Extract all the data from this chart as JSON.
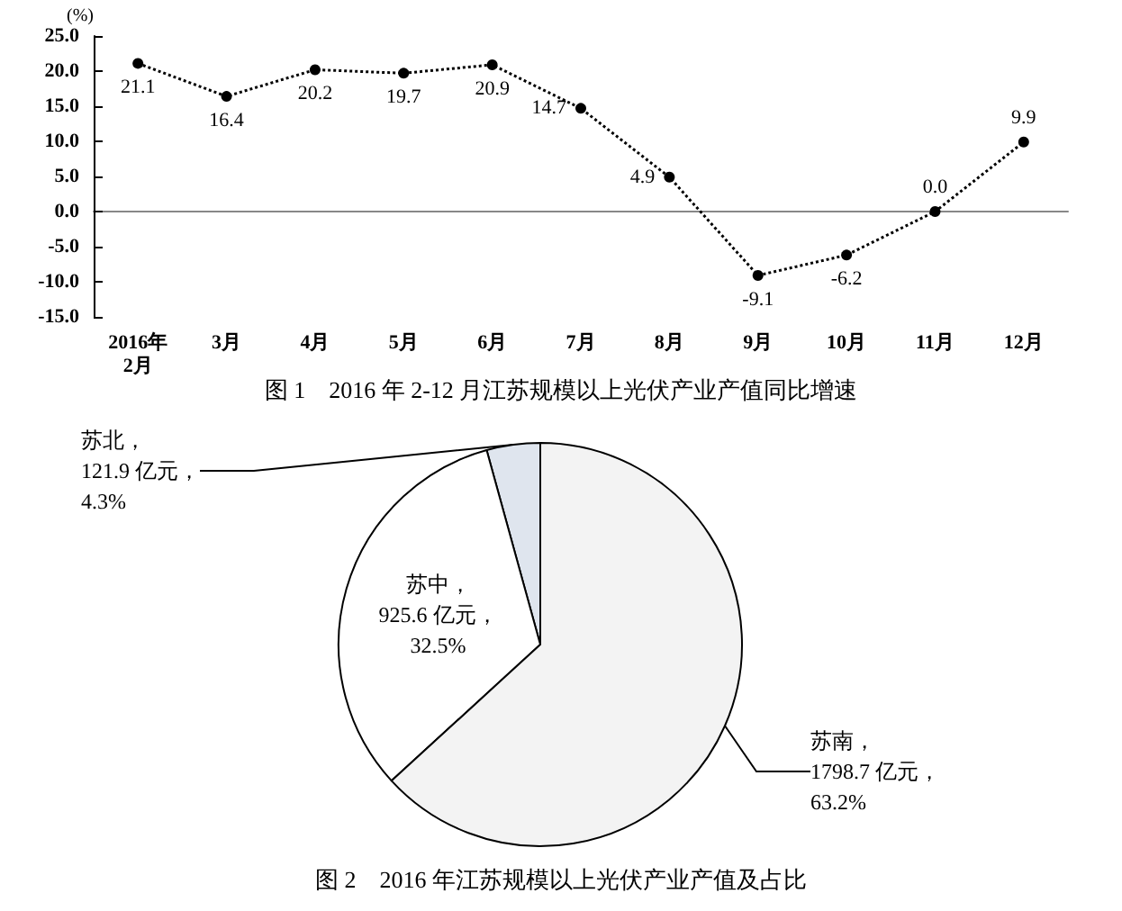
{
  "chart_data": [
    {
      "type": "line",
      "title": "图 1　2016 年 2-12 月江苏规模以上光伏产业产值同比增速",
      "ylabel": "(%)",
      "categories": [
        "2016年\n2月",
        "3月",
        "4月",
        "5月",
        "6月",
        "7月",
        "8月",
        "9月",
        "10月",
        "11月",
        "12月"
      ],
      "series": [
        {
          "color": "#000000",
          "values": [
            21.1,
            16.4,
            20.2,
            19.7,
            20.9,
            14.7,
            4.9,
            -9.1,
            -6.2,
            0.0,
            9.9
          ],
          "value_labels": [
            "21.1",
            "16.4",
            "20.2",
            "19.7",
            "20.9",
            "14.7",
            "4.9",
            "-9.1",
            "-6.2",
            "0.0",
            "9.9"
          ]
        }
      ],
      "ylim": [
        -15,
        25
      ],
      "yticks": [
        {
          "value": -15,
          "label": "-15.0"
        },
        {
          "value": -10,
          "label": "-10.0"
        },
        {
          "value": -5,
          "label": "-5.0"
        },
        {
          "value": 0,
          "label": "0.0"
        },
        {
          "value": 5,
          "label": "5.0"
        },
        {
          "value": 10,
          "label": "10.0"
        },
        {
          "value": 15,
          "label": "15.0"
        },
        {
          "value": 20,
          "label": "20.0"
        },
        {
          "value": 25,
          "label": "25.0"
        }
      ],
      "marker": "circle",
      "line_style": "dotted",
      "legend": false
    },
    {
      "type": "pie",
      "title": "图 2　2016 年江苏规模以上光伏产业产值及占比",
      "categories": [
        "苏北",
        "苏中",
        "苏南"
      ],
      "values": [
        121.9,
        925.6,
        1798.7
      ],
      "value_labels": [
        "，\n121.9 亿元，\n4.3%",
        "，\n925.6 亿元，\n32.5%",
        "，\n1798.7 亿元，\n63.2%"
      ],
      "colors": [
        "#dfe5ee",
        "#ffffff",
        "#f3f3f3"
      ],
      "legend": false
    }
  ]
}
